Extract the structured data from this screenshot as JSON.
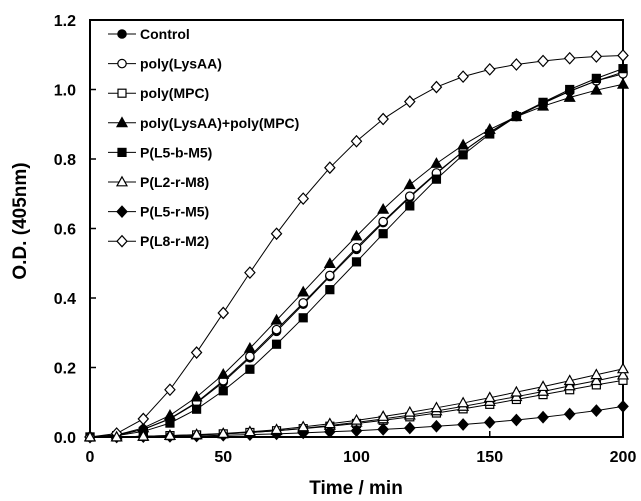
{
  "chart_data": {
    "type": "line",
    "xlabel": "Time / min",
    "ylabel": "O.D. (405nm)",
    "xlim": [
      0,
      200
    ],
    "ylim": [
      0,
      1.2
    ],
    "xticks": [
      "0",
      "50",
      "100",
      "150",
      "200"
    ],
    "yticks": [
      "0.0",
      "0.2",
      "0.4",
      "0.6",
      "0.8",
      "1.0",
      "1.2"
    ],
    "grid": false,
    "legend_position": "top-left",
    "x": [
      0,
      10,
      20,
      30,
      40,
      50,
      60,
      70,
      80,
      90,
      100,
      110,
      120,
      130,
      140,
      150,
      160,
      170,
      180,
      190,
      200
    ],
    "series": [
      {
        "name": "Control",
        "marker": "circle",
        "fill": "filled",
        "values": [
          0,
          0.005,
          0.022,
          0.052,
          0.098,
          0.158,
          0.228,
          0.304,
          0.382,
          0.462,
          0.54,
          0.617,
          0.69,
          0.758,
          0.822,
          0.877,
          0.925,
          0.962,
          0.995,
          1.025,
          1.05
        ]
      },
      {
        "name": "poly(LysAA)",
        "marker": "circle",
        "fill": "open",
        "values": [
          0,
          0.005,
          0.022,
          0.053,
          0.1,
          0.162,
          0.232,
          0.309,
          0.386,
          0.465,
          0.545,
          0.62,
          0.693,
          0.76,
          0.822,
          0.876,
          0.922,
          0.96,
          0.995,
          1.025,
          1.045
        ]
      },
      {
        "name": "poly(MPC)",
        "marker": "square",
        "fill": "open",
        "values": [
          0,
          0,
          0.002,
          0.004,
          0.006,
          0.009,
          0.013,
          0.018,
          0.024,
          0.031,
          0.039,
          0.048,
          0.058,
          0.069,
          0.081,
          0.094,
          0.108,
          0.122,
          0.136,
          0.15,
          0.163
        ]
      },
      {
        "name": "poly(LysAA)+poly(MPC)",
        "marker": "triangle",
        "fill": "filled",
        "values": [
          0,
          0.006,
          0.026,
          0.062,
          0.115,
          0.18,
          0.255,
          0.336,
          0.417,
          0.499,
          0.578,
          0.655,
          0.726,
          0.787,
          0.84,
          0.885,
          0.922,
          0.952,
          0.977,
          0.998,
          1.015
        ]
      },
      {
        "name": "P(L5-b-M5)",
        "marker": "square",
        "fill": "filled",
        "values": [
          0,
          0.004,
          0.016,
          0.04,
          0.08,
          0.133,
          0.195,
          0.267,
          0.343,
          0.424,
          0.504,
          0.585,
          0.665,
          0.742,
          0.812,
          0.872,
          0.922,
          0.963,
          1.0,
          1.032,
          1.06
        ]
      },
      {
        "name": "P(L2-r-M8)",
        "marker": "triangle",
        "fill": "open",
        "values": [
          0,
          0,
          0.002,
          0.004,
          0.006,
          0.009,
          0.013,
          0.018,
          0.025,
          0.033,
          0.042,
          0.052,
          0.063,
          0.075,
          0.088,
          0.102,
          0.116,
          0.131,
          0.147,
          0.162,
          0.178
        ]
      },
      {
        "name": "P(L5-r-M5)",
        "marker": "diamond",
        "fill": "filled",
        "values": [
          0,
          0,
          0.001,
          0.002,
          0.003,
          0.005,
          0.007,
          0.009,
          0.012,
          0.015,
          0.018,
          0.022,
          0.026,
          0.031,
          0.036,
          0.042,
          0.049,
          0.057,
          0.066,
          0.076,
          0.088
        ]
      },
      {
        "name": "P(L8-r-M2)",
        "marker": "diamond",
        "fill": "open",
        "values": [
          0,
          0.01,
          0.052,
          0.136,
          0.243,
          0.357,
          0.473,
          0.585,
          0.686,
          0.775,
          0.851,
          0.915,
          0.965,
          1.007,
          1.037,
          1.058,
          1.072,
          1.082,
          1.09,
          1.095,
          1.098
        ]
      },
      {
        "name": "",
        "marker": "triangle",
        "fill": "open",
        "values": [
          0,
          0,
          0.002,
          0.004,
          0.007,
          0.01,
          0.015,
          0.021,
          0.029,
          0.038,
          0.048,
          0.059,
          0.071,
          0.084,
          0.098,
          0.113,
          0.129,
          0.145,
          0.162,
          0.179,
          0.196
        ]
      }
    ]
  }
}
